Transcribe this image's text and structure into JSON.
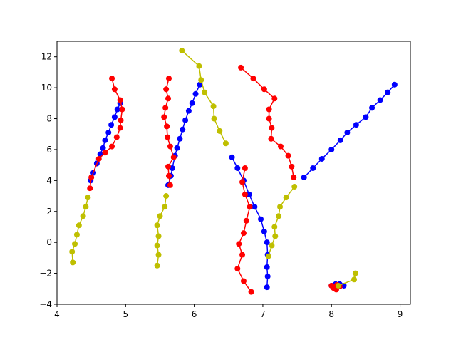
{
  "chart_data": {
    "type": "line",
    "title": "",
    "xlabel": "",
    "ylabel": "",
    "xlim": [
      4.0,
      9.15
    ],
    "ylim": [
      -4,
      13
    ],
    "xticks": [
      4,
      5,
      6,
      7,
      8,
      9
    ],
    "yticks": [
      -4,
      -2,
      0,
      2,
      4,
      6,
      8,
      10,
      12
    ],
    "grid": false,
    "colors": {
      "blue": "#0000ff",
      "red": "#ff0000",
      "olive": "#bfbf00"
    },
    "series": [
      {
        "color": "blue",
        "points": [
          [
            4.49,
            4.0
          ],
          [
            4.53,
            4.5
          ],
          [
            4.58,
            5.1
          ],
          [
            4.63,
            5.7
          ],
          [
            4.67,
            6.1
          ],
          [
            4.7,
            6.6
          ],
          [
            4.75,
            7.1
          ],
          [
            4.79,
            7.6
          ],
          [
            4.84,
            8.1
          ],
          [
            4.88,
            8.6
          ],
          [
            4.92,
            9.0
          ]
        ]
      },
      {
        "color": "red",
        "points": [
          [
            4.8,
            10.6
          ],
          [
            4.84,
            9.9
          ],
          [
            4.92,
            9.2
          ],
          [
            4.95,
            8.6
          ],
          [
            4.93,
            7.9
          ],
          [
            4.92,
            7.4
          ],
          [
            4.87,
            6.8
          ],
          [
            4.8,
            6.2
          ],
          [
            4.7,
            5.8
          ],
          [
            4.61,
            5.4
          ],
          [
            4.5,
            4.2
          ],
          [
            4.48,
            3.5
          ]
        ]
      },
      {
        "color": "olive",
        "points": [
          [
            4.45,
            2.9
          ],
          [
            4.42,
            2.3
          ],
          [
            4.38,
            1.7
          ],
          [
            4.32,
            1.1
          ],
          [
            4.29,
            0.5
          ],
          [
            4.26,
            -0.1
          ],
          [
            4.22,
            -0.6
          ],
          [
            4.23,
            -1.3
          ]
        ]
      },
      {
        "color": "blue",
        "points": [
          [
            5.62,
            3.7
          ],
          [
            5.66,
            4.3
          ],
          [
            5.68,
            4.8
          ],
          [
            5.72,
            5.6
          ],
          [
            5.75,
            6.1
          ],
          [
            5.79,
            6.7
          ],
          [
            5.83,
            7.3
          ],
          [
            5.87,
            7.9
          ],
          [
            5.92,
            8.5
          ],
          [
            5.97,
            9.0
          ],
          [
            6.02,
            9.6
          ],
          [
            6.08,
            10.2
          ]
        ]
      },
      {
        "color": "red",
        "points": [
          [
            5.63,
            10.6
          ],
          [
            5.59,
            9.9
          ],
          [
            5.62,
            9.3
          ],
          [
            5.58,
            8.7
          ],
          [
            5.56,
            8.1
          ],
          [
            5.6,
            7.5
          ],
          [
            5.61,
            6.8
          ],
          [
            5.65,
            6.2
          ],
          [
            5.7,
            5.5
          ],
          [
            5.62,
            4.9
          ],
          [
            5.63,
            4.3
          ],
          [
            5.65,
            3.7
          ]
        ]
      },
      {
        "color": "olive",
        "points": [
          [
            5.59,
            3.0
          ],
          [
            5.57,
            2.3
          ],
          [
            5.5,
            1.7
          ],
          [
            5.46,
            1.1
          ],
          [
            5.48,
            0.4
          ],
          [
            5.46,
            -0.2
          ],
          [
            5.48,
            -0.8
          ],
          [
            5.46,
            -1.5
          ]
        ]
      },
      {
        "color": "olive",
        "points": [
          [
            5.82,
            12.4
          ],
          [
            6.07,
            11.4
          ],
          [
            6.1,
            10.5
          ],
          [
            6.15,
            9.7
          ],
          [
            6.28,
            8.8
          ],
          [
            6.29,
            8.0
          ],
          [
            6.37,
            7.2
          ],
          [
            6.46,
            6.4
          ]
        ]
      },
      {
        "color": "blue",
        "points": [
          [
            6.55,
            5.5
          ],
          [
            6.63,
            4.8
          ],
          [
            6.72,
            4.0
          ],
          [
            6.8,
            3.1
          ],
          [
            6.88,
            2.3
          ],
          [
            6.97,
            1.5
          ],
          [
            7.02,
            0.7
          ],
          [
            7.06,
            0.0
          ],
          [
            7.07,
            -0.8
          ],
          [
            7.06,
            -1.6
          ],
          [
            7.07,
            -2.2
          ],
          [
            7.06,
            -2.9
          ]
        ]
      },
      {
        "color": "red",
        "points": [
          [
            6.74,
            4.8
          ],
          [
            6.7,
            3.9
          ],
          [
            6.74,
            3.1
          ],
          [
            6.81,
            2.3
          ],
          [
            6.76,
            1.4
          ],
          [
            6.72,
            0.6
          ],
          [
            6.65,
            -0.1
          ],
          [
            6.7,
            -0.8
          ],
          [
            6.63,
            -1.7
          ],
          [
            6.72,
            -2.5
          ],
          [
            6.83,
            -3.2
          ]
        ]
      },
      {
        "color": "red",
        "points": [
          [
            6.68,
            11.3
          ],
          [
            6.86,
            10.6
          ],
          [
            7.02,
            9.9
          ],
          [
            7.17,
            9.3
          ],
          [
            7.09,
            8.6
          ],
          [
            7.09,
            8.0
          ],
          [
            7.13,
            7.4
          ],
          [
            7.12,
            6.7
          ],
          [
            7.26,
            6.2
          ],
          [
            7.37,
            5.6
          ],
          [
            7.42,
            4.9
          ],
          [
            7.45,
            4.2
          ]
        ]
      },
      {
        "color": "olive",
        "points": [
          [
            7.46,
            3.6
          ],
          [
            7.34,
            2.9
          ],
          [
            7.25,
            2.3
          ],
          [
            7.23,
            1.7
          ],
          [
            7.17,
            1.0
          ],
          [
            7.18,
            0.4
          ],
          [
            7.13,
            -0.2
          ],
          [
            7.08,
            -0.9
          ]
        ]
      },
      {
        "color": "blue",
        "points": [
          [
            7.6,
            4.2
          ],
          [
            7.73,
            4.8
          ],
          [
            7.86,
            5.4
          ],
          [
            8.0,
            6.0
          ],
          [
            8.13,
            6.6
          ],
          [
            8.23,
            7.1
          ],
          [
            8.36,
            7.6
          ],
          [
            8.5,
            8.1
          ],
          [
            8.59,
            8.7
          ],
          [
            8.71,
            9.2
          ],
          [
            8.82,
            9.7
          ],
          [
            8.92,
            10.2
          ]
        ]
      },
      {
        "color": "blue",
        "points": [
          [
            8.0,
            -2.8
          ],
          [
            8.06,
            -2.7
          ],
          [
            8.12,
            -2.7
          ],
          [
            8.18,
            -2.8
          ],
          [
            8.1,
            -2.85
          ]
        ]
      },
      {
        "color": "red",
        "points": [
          [
            8.0,
            -2.8
          ],
          [
            8.03,
            -2.95
          ],
          [
            8.07,
            -3.05
          ],
          [
            8.04,
            -2.9
          ],
          [
            8.12,
            -2.85
          ],
          [
            8.08,
            -2.75
          ]
        ]
      },
      {
        "color": "olive",
        "points": [
          [
            8.1,
            -2.8
          ],
          [
            8.33,
            -2.4
          ],
          [
            8.35,
            -2.0
          ]
        ]
      }
    ]
  }
}
